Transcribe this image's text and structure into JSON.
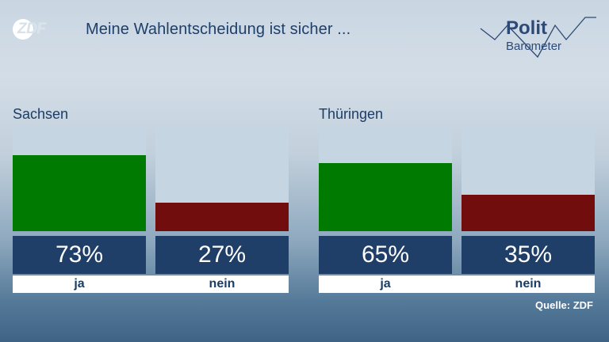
{
  "header": {
    "logo_text": "ZDF",
    "title": "Meine Wahlentscheidung ist sicher ...",
    "brand_line1": "Polit",
    "brand_line2": "Barometer"
  },
  "source": "Quelle: ZDF",
  "colors": {
    "ja": "#007a00",
    "nein": "#710d0d",
    "remainder": "#c5d5e2",
    "value_box": "#1f3f68"
  },
  "chart_data": [
    {
      "type": "bar",
      "title": "Sachsen",
      "categories": [
        "ja",
        "nein"
      ],
      "values": [
        73,
        27
      ],
      "value_labels": [
        "73%",
        "27%"
      ],
      "unit": "%",
      "ylim": [
        0,
        100
      ]
    },
    {
      "type": "bar",
      "title": "Thüringen",
      "categories": [
        "ja",
        "nein"
      ],
      "values": [
        65,
        35
      ],
      "value_labels": [
        "65%",
        "35%"
      ],
      "unit": "%",
      "ylim": [
        0,
        100
      ]
    }
  ]
}
